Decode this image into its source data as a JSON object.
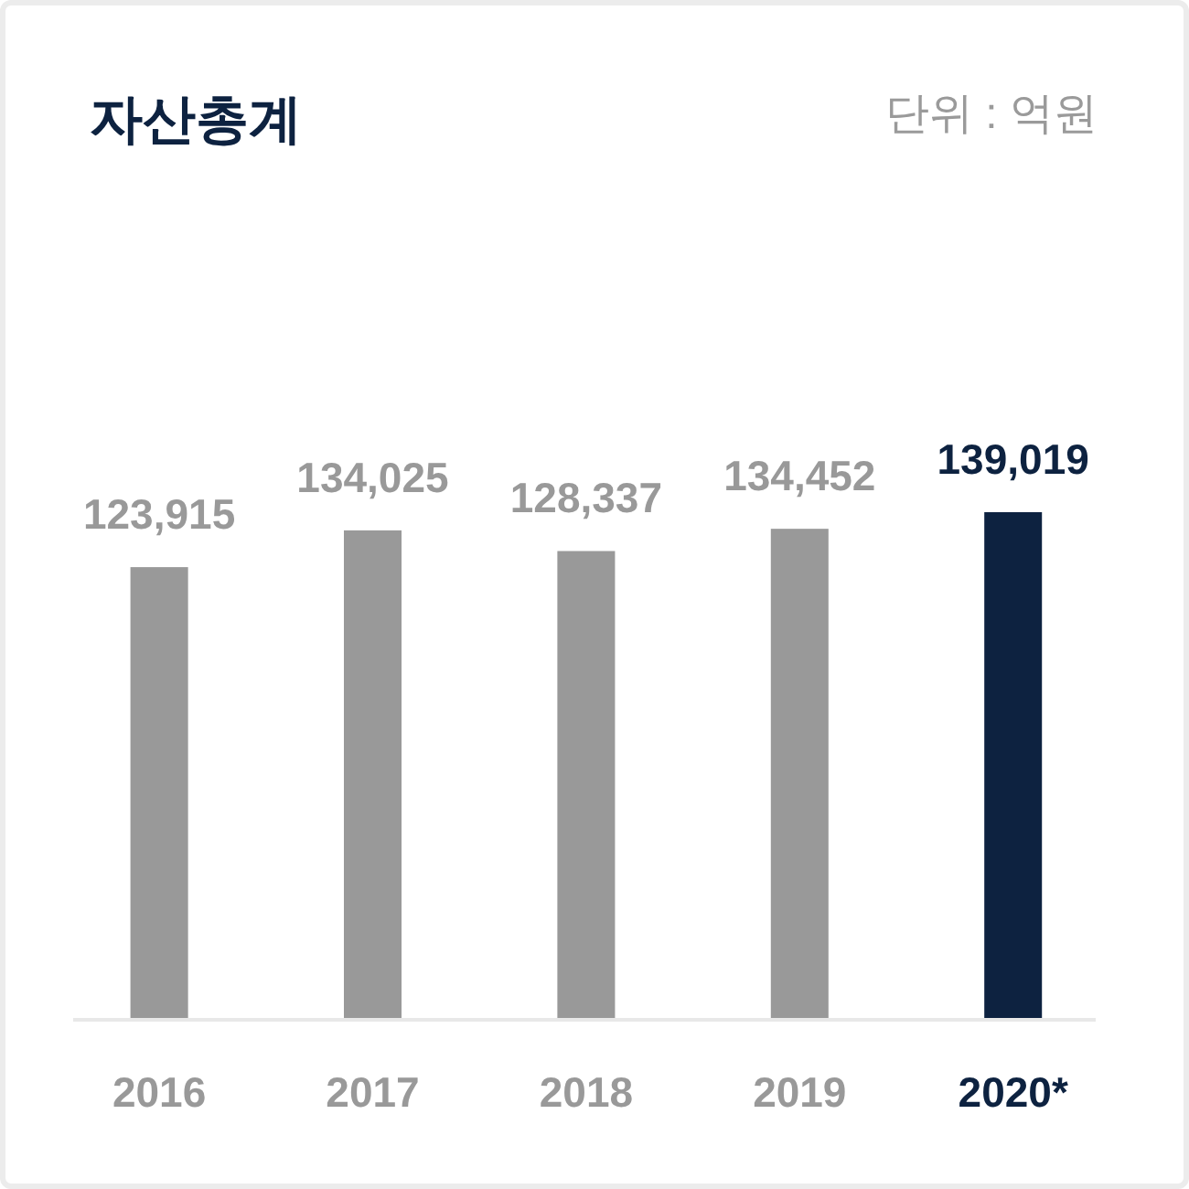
{
  "chart_data": {
    "type": "bar",
    "title": "자산총계",
    "annotations": [
      "단위 : 억원"
    ],
    "categories": [
      "2016",
      "2017",
      "2018",
      "2019",
      "2020*"
    ],
    "values": [
      123915,
      134025,
      128337,
      134452,
      139019
    ],
    "value_labels": [
      "123,915",
      "134,025",
      "128,337",
      "134,452",
      "139,019"
    ],
    "colors": [
      "#999999",
      "#999999",
      "#999999",
      "#999999",
      "#0d2240"
    ]
  }
}
